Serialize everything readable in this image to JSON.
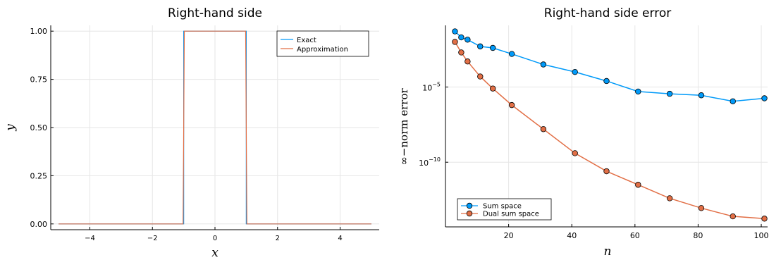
{
  "chart_data": [
    {
      "type": "line",
      "title": "Right-hand side",
      "xlabel": "x",
      "ylabel": "y",
      "xlim": [
        -5.25,
        5.25
      ],
      "ylim": [
        -0.03,
        1.03
      ],
      "xticks": [
        -4,
        -2,
        0,
        2,
        4
      ],
      "xtick_labels": [
        "−4",
        "−2",
        "0",
        "2",
        "4"
      ],
      "yticks": [
        0.0,
        0.25,
        0.5,
        0.75,
        1.0
      ],
      "ytick_labels": [
        "0.00",
        "0.25",
        "0.50",
        "0.75",
        "1.00"
      ],
      "grid": true,
      "legend_position": "top-right",
      "series": [
        {
          "name": "Exact",
          "color": "#009af9",
          "x": [
            -5,
            -1,
            -1,
            1,
            1,
            5
          ],
          "y": [
            0,
            0,
            1,
            1,
            0,
            0
          ]
        },
        {
          "name": "Approximation",
          "color": "#e26f46",
          "x": [
            -5,
            -1.02,
            -0.98,
            0.98,
            1.02,
            5
          ],
          "y": [
            0,
            0,
            1,
            1,
            0,
            0
          ]
        }
      ]
    },
    {
      "type": "line",
      "title": "Right-hand side error",
      "xlabel": "n",
      "ylabel": "∞−norm  error",
      "yscale": "log",
      "xlim": [
        0,
        102
      ],
      "ylim_log10": [
        -14.3,
        -0.9
      ],
      "xticks": [
        20,
        40,
        60,
        80,
        100
      ],
      "xtick_labels": [
        "20",
        "40",
        "60",
        "80",
        "100"
      ],
      "yticks_log10": [
        -5,
        -10
      ],
      "ytick_base": "10",
      "ytick_exponents": [
        "−5",
        "−10"
      ],
      "grid": true,
      "legend_position": "bottom-left",
      "series": [
        {
          "name": "Sum space",
          "color": "#009af9",
          "marker": "circle",
          "x": [
            3,
            5,
            7,
            11,
            15,
            21,
            31,
            41,
            51,
            61,
            71,
            81,
            91,
            101
          ],
          "log10_y": [
            -1.3,
            -1.7,
            -1.85,
            -2.3,
            -2.4,
            -2.8,
            -3.5,
            -4.0,
            -4.6,
            -5.3,
            -5.45,
            -5.55,
            -5.95,
            -5.75
          ]
        },
        {
          "name": "Dual sum space",
          "color": "#e26f46",
          "marker": "circle",
          "x": [
            3,
            5,
            7,
            11,
            15,
            21,
            31,
            41,
            51,
            61,
            71,
            81,
            91,
            101
          ],
          "log10_y": [
            -2.0,
            -2.7,
            -3.3,
            -4.3,
            -5.1,
            -6.2,
            -7.8,
            -9.4,
            -10.6,
            -11.5,
            -12.4,
            -13.05,
            -13.6,
            -13.75
          ]
        }
      ]
    }
  ]
}
